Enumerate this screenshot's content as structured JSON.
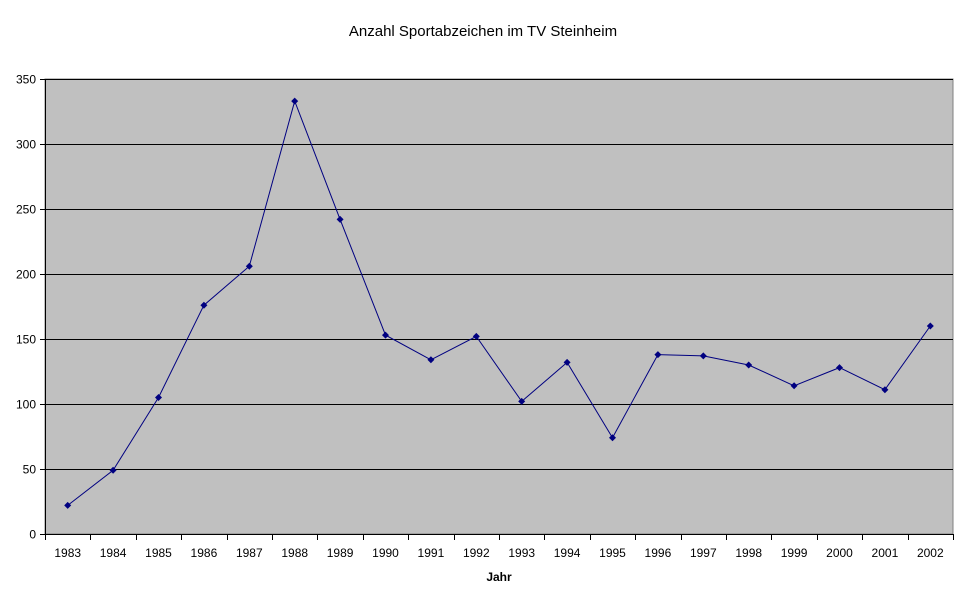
{
  "chart_data": {
    "type": "line",
    "title": "Anzahl Sportabzeichen im TV Steinheim",
    "xlabel": "Jahr",
    "ylabel": "",
    "categories": [
      "1983",
      "1984",
      "1985",
      "1986",
      "1987",
      "1988",
      "1989",
      "1990",
      "1991",
      "1992",
      "1993",
      "1994",
      "1995",
      "1996",
      "1997",
      "1998",
      "1999",
      "2000",
      "2001",
      "2002"
    ],
    "series": [
      {
        "values": [
          22,
          49,
          105,
          176,
          206,
          333,
          242,
          153,
          134,
          152,
          102,
          132,
          74,
          138,
          137,
          130,
          114,
          128,
          111,
          160
        ]
      }
    ],
    "ylim": [
      0,
      350
    ],
    "yticks": [
      "0",
      "50",
      "100",
      "150",
      "200",
      "250",
      "300",
      "350"
    ],
    "grid": true,
    "legend": "none",
    "colors": {
      "line": "#000080",
      "marker": "#000080",
      "plot_background": "#c0c0c0",
      "gridline": "#000000"
    }
  }
}
